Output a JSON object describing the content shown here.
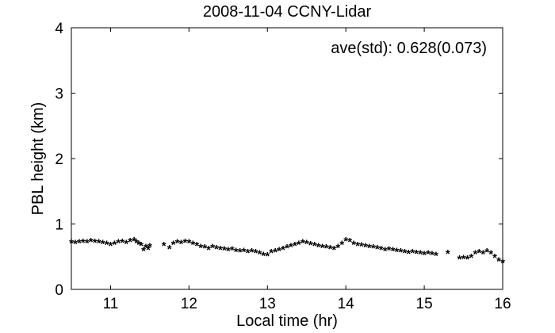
{
  "chart_data": {
    "type": "scatter",
    "title": "2008-11-04 CCNY-Lidar",
    "xlabel": "Local time (hr)",
    "ylabel": "PBL height (km)",
    "annotation": "ave(std): 0.628(0.073)",
    "xlim": [
      10.5,
      16
    ],
    "ylim": [
      0,
      4
    ],
    "xticks": [
      11,
      12,
      13,
      14,
      15,
      16
    ],
    "yticks": [
      0,
      1,
      2,
      3,
      4
    ],
    "grid": false,
    "legend": "none",
    "marker": "*",
    "marker_color": "#000000",
    "series": [
      {
        "x": [
          10.5,
          10.55,
          10.6,
          10.65,
          10.7,
          10.75,
          10.8,
          10.85,
          10.9,
          10.95,
          11.0,
          11.05,
          11.1,
          11.15,
          11.2,
          11.25,
          11.3,
          11.33,
          11.36,
          11.39,
          11.42,
          11.45,
          11.48,
          11.5,
          11.68,
          11.75,
          11.8,
          11.85,
          11.9,
          11.95,
          12.0,
          12.05,
          12.1,
          12.15,
          12.2,
          12.25,
          12.3,
          12.35,
          12.4,
          12.45,
          12.5,
          12.55,
          12.6,
          12.65,
          12.7,
          12.75,
          12.8,
          12.85,
          12.9,
          12.95,
          13.0,
          13.05,
          13.1,
          13.15,
          13.2,
          13.25,
          13.3,
          13.35,
          13.4,
          13.45,
          13.5,
          13.55,
          13.6,
          13.65,
          13.7,
          13.75,
          13.8,
          13.85,
          13.9,
          13.95,
          14.0,
          14.05,
          14.1,
          14.15,
          14.2,
          14.25,
          14.3,
          14.35,
          14.4,
          14.45,
          14.5,
          14.55,
          14.6,
          14.65,
          14.7,
          14.75,
          14.8,
          14.85,
          14.9,
          14.95,
          15.0,
          15.05,
          15.1,
          15.15,
          15.3,
          15.45,
          15.5,
          15.55,
          15.6,
          15.65,
          15.7,
          15.75,
          15.8,
          15.85,
          15.9,
          15.95,
          16.0
        ],
        "y": [
          0.72,
          0.71,
          0.72,
          0.73,
          0.72,
          0.74,
          0.73,
          0.72,
          0.71,
          0.7,
          0.68,
          0.7,
          0.72,
          0.73,
          0.71,
          0.74,
          0.75,
          0.72,
          0.7,
          0.68,
          0.6,
          0.65,
          0.62,
          0.66,
          0.68,
          0.63,
          0.7,
          0.72,
          0.71,
          0.73,
          0.72,
          0.7,
          0.68,
          0.65,
          0.64,
          0.62,
          0.65,
          0.63,
          0.62,
          0.61,
          0.6,
          0.61,
          0.59,
          0.58,
          0.59,
          0.57,
          0.58,
          0.57,
          0.55,
          0.53,
          0.52,
          0.57,
          0.58,
          0.6,
          0.62,
          0.64,
          0.66,
          0.68,
          0.7,
          0.72,
          0.71,
          0.69,
          0.68,
          0.66,
          0.65,
          0.64,
          0.63,
          0.62,
          0.65,
          0.7,
          0.75,
          0.74,
          0.7,
          0.68,
          0.67,
          0.66,
          0.65,
          0.64,
          0.63,
          0.62,
          0.6,
          0.61,
          0.6,
          0.59,
          0.58,
          0.57,
          0.56,
          0.57,
          0.56,
          0.55,
          0.54,
          0.55,
          0.54,
          0.53,
          0.56,
          0.47,
          0.48,
          0.47,
          0.5,
          0.55,
          0.57,
          0.55,
          0.58,
          0.55,
          0.5,
          0.44,
          0.42
        ]
      }
    ]
  }
}
